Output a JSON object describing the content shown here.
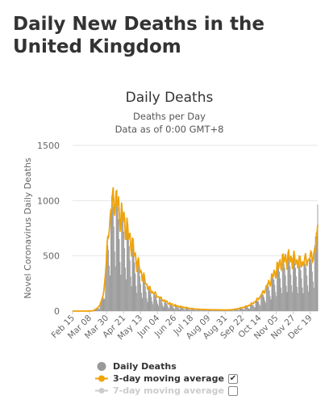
{
  "page_title": "Daily New Deaths in the United Kingdom",
  "legend": {
    "items": [
      {
        "label": "Daily Deaths",
        "color": "#999999",
        "checkbox": false,
        "checked": null,
        "enabled": true
      },
      {
        "label": "3-day moving average",
        "color": "#f0a30a",
        "checkbox": true,
        "checked": true,
        "check_glyph": "✔",
        "enabled": true
      },
      {
        "label": "7-day moving average",
        "color": "#cccccc",
        "checkbox": true,
        "checked": false,
        "check_glyph": "",
        "enabled": false
      }
    ]
  },
  "chart_data": {
    "type": "bar",
    "title": "Daily Deaths",
    "subtitle": "Deaths per Day",
    "subtitle2": "Data as of 0:00 GMT+8",
    "ylabel": "Novel Coronavirus Daily Deaths",
    "xlabel": "",
    "ylim": [
      0,
      1500
    ],
    "yticks": [
      0,
      500,
      1000,
      1500
    ],
    "grid": true,
    "legend_position": "bottom",
    "x_tick_labels": [
      "Feb 15",
      "Mar 08",
      "Mar 30",
      "Apr 21",
      "May 13",
      "Jun 04",
      "Jun 26",
      "Jul 18",
      "Aug 09",
      "Aug 31",
      "Sep 22",
      "Oct 14",
      "Nov 05",
      "Nov 27",
      "Dec 19"
    ],
    "x_start": "2020-02-15",
    "x_end": "2020-12-31",
    "series": [
      {
        "name": "Daily Deaths",
        "style": "bar",
        "color": "#999999",
        "anchors": [
          [
            "2020-02-15",
            0
          ],
          [
            "2020-03-05",
            0
          ],
          [
            "2020-03-12",
            2
          ],
          [
            "2020-03-16",
            15
          ],
          [
            "2020-03-20",
            40
          ],
          [
            "2020-03-24",
            80
          ],
          [
            "2020-03-27",
            180
          ],
          [
            "2020-03-30",
            400
          ],
          [
            "2020-04-02",
            650
          ],
          [
            "2020-04-05",
            750
          ],
          [
            "2020-04-08",
            900
          ],
          [
            "2020-04-11",
            900
          ],
          [
            "2020-04-14",
            820
          ],
          [
            "2020-04-17",
            740
          ],
          [
            "2020-04-21",
            700
          ],
          [
            "2020-04-25",
            640
          ],
          [
            "2020-04-29",
            560
          ],
          [
            "2020-05-03",
            480
          ],
          [
            "2020-05-08",
            380
          ],
          [
            "2020-05-13",
            300
          ],
          [
            "2020-05-18",
            240
          ],
          [
            "2020-05-24",
            170
          ],
          [
            "2020-06-01",
            130
          ],
          [
            "2020-06-08",
            100
          ],
          [
            "2020-06-15",
            70
          ],
          [
            "2020-06-22",
            50
          ],
          [
            "2020-07-01",
            38
          ],
          [
            "2020-07-10",
            25
          ],
          [
            "2020-07-20",
            18
          ],
          [
            "2020-08-01",
            13
          ],
          [
            "2020-08-15",
            10
          ],
          [
            "2020-08-31",
            8
          ],
          [
            "2020-09-10",
            10
          ],
          [
            "2020-09-20",
            20
          ],
          [
            "2020-09-30",
            35
          ],
          [
            "2020-10-07",
            55
          ],
          [
            "2020-10-14",
            90
          ],
          [
            "2020-10-21",
            140
          ],
          [
            "2020-10-28",
            210
          ],
          [
            "2020-11-05",
            280
          ],
          [
            "2020-11-12",
            350
          ],
          [
            "2020-11-19",
            380
          ],
          [
            "2020-11-27",
            390
          ],
          [
            "2020-12-03",
            370
          ],
          [
            "2020-12-10",
            350
          ],
          [
            "2020-12-17",
            380
          ],
          [
            "2020-12-24",
            420
          ],
          [
            "2020-12-28",
            520
          ],
          [
            "2020-12-30",
            720
          ],
          [
            "2020-12-31",
            965
          ]
        ]
      },
      {
        "name": "3-day moving average",
        "style": "line",
        "color": "#f0a30a",
        "anchors": [
          [
            "2020-02-15",
            0
          ],
          [
            "2020-03-05",
            0
          ],
          [
            "2020-03-12",
            2
          ],
          [
            "2020-03-16",
            15
          ],
          [
            "2020-03-20",
            40
          ],
          [
            "2020-03-24",
            90
          ],
          [
            "2020-03-27",
            200
          ],
          [
            "2020-03-30",
            430
          ],
          [
            "2020-04-02",
            760
          ],
          [
            "2020-04-05",
            900
          ],
          [
            "2020-04-08",
            1020
          ],
          [
            "2020-04-11",
            1020
          ],
          [
            "2020-04-14",
            960
          ],
          [
            "2020-04-17",
            880
          ],
          [
            "2020-04-21",
            850
          ],
          [
            "2020-04-25",
            760
          ],
          [
            "2020-04-29",
            680
          ],
          [
            "2020-05-03",
            600
          ],
          [
            "2020-05-08",
            470
          ],
          [
            "2020-05-13",
            380
          ],
          [
            "2020-05-18",
            300
          ],
          [
            "2020-05-24",
            210
          ],
          [
            "2020-06-01",
            160
          ],
          [
            "2020-06-08",
            120
          ],
          [
            "2020-06-15",
            90
          ],
          [
            "2020-06-22",
            65
          ],
          [
            "2020-07-01",
            45
          ],
          [
            "2020-07-10",
            33
          ],
          [
            "2020-07-20",
            22
          ],
          [
            "2020-08-01",
            15
          ],
          [
            "2020-08-15",
            12
          ],
          [
            "2020-08-31",
            10
          ],
          [
            "2020-09-10",
            12
          ],
          [
            "2020-09-20",
            25
          ],
          [
            "2020-09-30",
            45
          ],
          [
            "2020-10-07",
            70
          ],
          [
            "2020-10-14",
            110
          ],
          [
            "2020-10-21",
            170
          ],
          [
            "2020-10-28",
            250
          ],
          [
            "2020-11-05",
            350
          ],
          [
            "2020-11-12",
            440
          ],
          [
            "2020-11-19",
            480
          ],
          [
            "2020-11-27",
            480
          ],
          [
            "2020-12-03",
            460
          ],
          [
            "2020-12-10",
            440
          ],
          [
            "2020-12-17",
            470
          ],
          [
            "2020-12-24",
            500
          ],
          [
            "2020-12-28",
            560
          ],
          [
            "2020-12-30",
            700
          ],
          [
            "2020-12-31",
            780
          ]
        ]
      }
    ]
  }
}
